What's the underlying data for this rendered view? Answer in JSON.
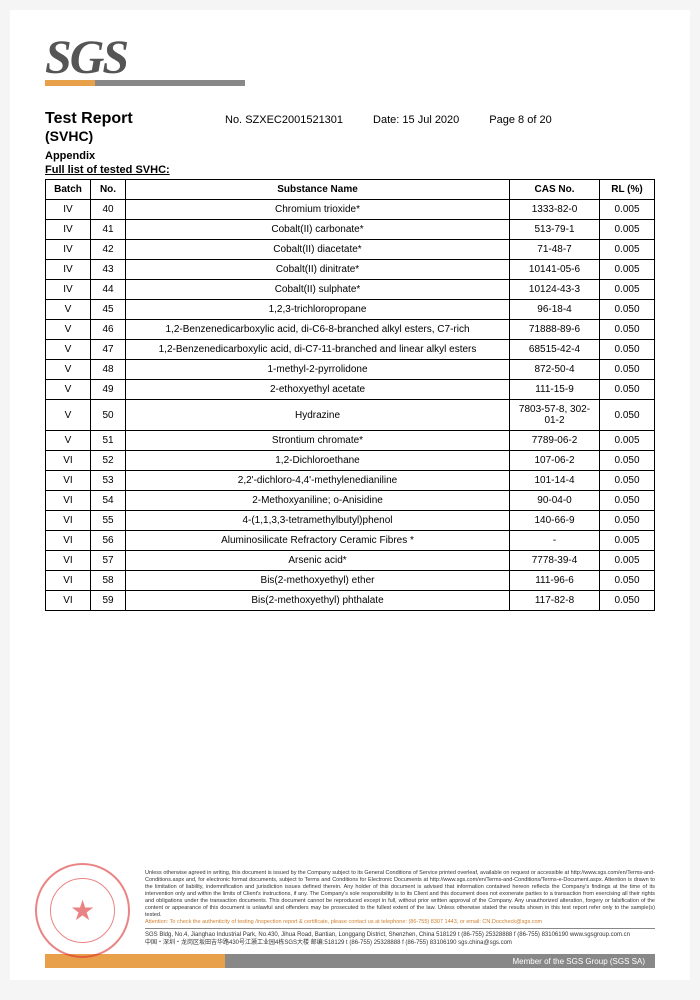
{
  "logo_text": "SGS",
  "header": {
    "title1": "Test Report",
    "title2": "(SVHC)",
    "report_no_label": "No.",
    "report_no": "SZXEC2001521301",
    "date_label": "Date:",
    "date": "15 Jul 2020",
    "page": "Page 8 of 20"
  },
  "appendix_label": "Appendix",
  "table_title": "Full list of tested SVHC:",
  "columns": {
    "batch": "Batch",
    "no": "No.",
    "name": "Substance Name",
    "cas": "CAS No.",
    "rl": "RL (%)"
  },
  "rows": [
    {
      "batch": "IV",
      "no": "40",
      "name": "Chromium trioxide*",
      "cas": "1333-82-0",
      "rl": "0.005"
    },
    {
      "batch": "IV",
      "no": "41",
      "name": "Cobalt(II) carbonate*",
      "cas": "513-79-1",
      "rl": "0.005"
    },
    {
      "batch": "IV",
      "no": "42",
      "name": "Cobalt(II) diacetate*",
      "cas": "71-48-7",
      "rl": "0.005"
    },
    {
      "batch": "IV",
      "no": "43",
      "name": "Cobalt(II) dinitrate*",
      "cas": "10141-05-6",
      "rl": "0.005"
    },
    {
      "batch": "IV",
      "no": "44",
      "name": "Cobalt(II) sulphate*",
      "cas": "10124-43-3",
      "rl": "0.005"
    },
    {
      "batch": "V",
      "no": "45",
      "name": "1,2,3-trichloropropane",
      "cas": "96-18-4",
      "rl": "0.050"
    },
    {
      "batch": "V",
      "no": "46",
      "name": "1,2-Benzenedicarboxylic acid, di-C6-8-branched alkyl esters, C7-rich",
      "cas": "71888-89-6",
      "rl": "0.050"
    },
    {
      "batch": "V",
      "no": "47",
      "name": "1,2-Benzenedicarboxylic acid, di-C7-11-branched and linear alkyl esters",
      "cas": "68515-42-4",
      "rl": "0.050"
    },
    {
      "batch": "V",
      "no": "48",
      "name": "1-methyl-2-pyrrolidone",
      "cas": "872-50-4",
      "rl": "0.050"
    },
    {
      "batch": "V",
      "no": "49",
      "name": "2-ethoxyethyl acetate",
      "cas": "111-15-9",
      "rl": "0.050"
    },
    {
      "batch": "V",
      "no": "50",
      "name": "Hydrazine",
      "cas": "7803-57-8, 302-01-2",
      "rl": "0.050"
    },
    {
      "batch": "V",
      "no": "51",
      "name": "Strontium chromate*",
      "cas": "7789-06-2",
      "rl": "0.005"
    },
    {
      "batch": "VI",
      "no": "52",
      "name": "1,2-Dichloroethane",
      "cas": "107-06-2",
      "rl": "0.050"
    },
    {
      "batch": "VI",
      "no": "53",
      "name": "2,2'-dichloro-4,4'-methylenedianiline",
      "cas": "101-14-4",
      "rl": "0.050"
    },
    {
      "batch": "VI",
      "no": "54",
      "name": "2-Methoxyaniline; o-Anisidine",
      "cas": "90-04-0",
      "rl": "0.050"
    },
    {
      "batch": "VI",
      "no": "55",
      "name": "4-(1,1,3,3-tetramethylbutyl)phenol",
      "cas": "140-66-9",
      "rl": "0.050"
    },
    {
      "batch": "VI",
      "no": "56",
      "name": "Aluminosilicate Refractory Ceramic Fibres *",
      "cas": "-",
      "rl": "0.005"
    },
    {
      "batch": "VI",
      "no": "57",
      "name": "Arsenic acid*",
      "cas": "7778-39-4",
      "rl": "0.005"
    },
    {
      "batch": "VI",
      "no": "58",
      "name": "Bis(2-methoxyethyl) ether",
      "cas": "111-96-6",
      "rl": "0.050"
    },
    {
      "batch": "VI",
      "no": "59",
      "name": "Bis(2-methoxyethyl) phthalate",
      "cas": "117-82-8",
      "rl": "0.050"
    }
  ],
  "footer": {
    "disclaimer": "Unless otherwise agreed in writing, this document is issued by the Company subject to its General Conditions of Service printed overleaf, available on request or accessible at http://www.sgs.com/en/Terms-and-Conditions.aspx and, for electronic format documents, subject to Terms and Conditions for Electronic Documents at http://www.sgs.com/en/Terms-and-Conditions/Terms-e-Document.aspx. Attention is drawn to the limitation of liability, indemnification and jurisdiction issues defined therein. Any holder of this document is advised that information contained hereon reflects the Company's findings at the time of its intervention only and within the limits of Client's instructions, if any. The Company's sole responsibility is to its Client and this document does not exonerate parties to a transaction from exercising all their rights and obligations under the transaction documents. This document cannot be reproduced except in full, without prior written approval of the Company. Any unauthorized alteration, forgery or falsification of the content or appearance of this document is unlawful and offenders may be prosecuted to the fullest extent of the law. Unless otherwise stated the results shown in this test report refer only to the sample(s) tested.",
    "attention": "Attention: To check the authenticity of testing /inspection report & certificate, please contact us at telephone: (86-755) 8307 1443, or email: CN.Doccheck@sgs.com",
    "address1": "SGS Bldg, No.4, Jianghao Industrial Park, No.430, Jihua Road, Bantian, Longgang District, Shenzhen, China 518129  t (86-755) 25328888  f (86-755) 83106190  www.sgsgroup.com.cn",
    "address2": "中国・深圳・龙岗区坂田吉华路430号江灏工业园4栋SGS大楼        邮编:518129  t (86-755) 25328888  f (86-755) 83106190  sgs.china@sgs.com",
    "member": "Member of the SGS Group (SGS SA)"
  }
}
